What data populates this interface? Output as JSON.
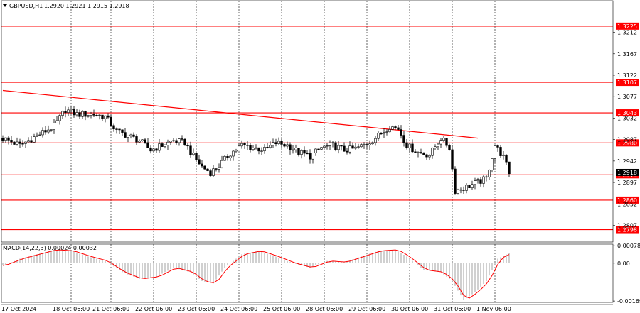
{
  "header": {
    "symbol": "GBPUSD,H1",
    "ohlc": "1.2920 1.2921 1.2915 1.2918",
    "macd_label": "MACD(14,22,3) 0.00024 0.00032"
  },
  "colors": {
    "background": "#ffffff",
    "candle": "#000000",
    "level_line": "#ff0000",
    "level_tag": "#ff0000",
    "trend_line": "#ff0000",
    "grid": "#000000",
    "macd_hist": "#a0a0a0",
    "macd_signal": "#ff0000"
  },
  "chart_data": {
    "type": "candlestick",
    "price_axis": {
      "range": [
        1.2772,
        1.3262
      ],
      "tick_labels": [
        "1.3212",
        "1.3167",
        "1.3122",
        "1.3077",
        "1.3032",
        "1.2987",
        "1.2942",
        "1.2897",
        "1.2852",
        "1.2807"
      ],
      "tick_values": [
        1.3212,
        1.3167,
        1.3122,
        1.3077,
        1.3032,
        1.2987,
        1.2942,
        1.2897,
        1.2852,
        1.2807
      ]
    },
    "levels": [
      {
        "value": 1.3225,
        "label": "1.3225"
      },
      {
        "value": 1.3107,
        "label": "1.3107"
      },
      {
        "value": 1.3043,
        "label": "1.3043"
      },
      {
        "value": 1.298,
        "label": "1.2980"
      },
      {
        "value": 1.2913,
        "label": "1.2913"
      },
      {
        "value": 1.286,
        "label": "1.2860"
      },
      {
        "value": 1.2798,
        "label": "1.2798"
      }
    ],
    "current_price": {
      "value": 1.2918,
      "label": "1.2918"
    },
    "trend_line": {
      "from": {
        "bar": 0,
        "price": 1.309
      },
      "to": {
        "bar": 167,
        "price": 1.299
      }
    },
    "time_labels": [
      {
        "bar": 0,
        "label": "17 Oct 2024"
      },
      {
        "bar": 24,
        "label": "18 Oct 06:00"
      },
      {
        "bar": 38,
        "label": "21 Oct 06:00"
      },
      {
        "bar": 53,
        "label": "22 Oct 06:00"
      },
      {
        "bar": 68,
        "label": "23 Oct 06:00"
      },
      {
        "bar": 83,
        "label": "24 Oct 06:00"
      },
      {
        "bar": 98,
        "label": "25 Oct 06:00"
      },
      {
        "bar": 113,
        "label": "28 Oct 06:00"
      },
      {
        "bar": 128,
        "label": "29 Oct 06:00"
      },
      {
        "bar": 143,
        "label": "30 Oct 06:00"
      },
      {
        "bar": 158,
        "label": "31 Oct 06:00"
      },
      {
        "bar": 173,
        "label": "1 Nov 06:00"
      }
    ],
    "bars_total": 215,
    "close_path": [
      [
        0,
        1.299
      ],
      [
        6,
        1.2975
      ],
      [
        12,
        1.2995
      ],
      [
        18,
        1.3015
      ],
      [
        22,
        1.305
      ],
      [
        26,
        1.304
      ],
      [
        32,
        1.304
      ],
      [
        36,
        1.3035
      ],
      [
        40,
        1.3005
      ],
      [
        44,
        1.2995
      ],
      [
        48,
        1.2985
      ],
      [
        52,
        1.2965
      ],
      [
        56,
        1.2975
      ],
      [
        60,
        1.2985
      ],
      [
        64,
        1.298
      ],
      [
        67,
        1.2952
      ],
      [
        70,
        1.293
      ],
      [
        73,
        1.2918
      ],
      [
        76,
        1.2932
      ],
      [
        80,
        1.2958
      ],
      [
        84,
        1.2975
      ],
      [
        88,
        1.297
      ],
      [
        92,
        1.2965
      ],
      [
        96,
        1.298
      ],
      [
        100,
        1.2975
      ],
      [
        104,
        1.296
      ],
      [
        108,
        1.2952
      ],
      [
        112,
        1.297
      ],
      [
        116,
        1.2975
      ],
      [
        120,
        1.2965
      ],
      [
        124,
        1.2968
      ],
      [
        128,
        1.2978
      ],
      [
        132,
        1.2995
      ],
      [
        136,
        1.3015
      ],
      [
        139,
        1.301
      ],
      [
        142,
        1.2975
      ],
      [
        146,
        1.296
      ],
      [
        150,
        1.2955
      ],
      [
        154,
        1.299
      ],
      [
        157,
        1.297
      ],
      [
        159,
        1.288
      ],
      [
        162,
        1.2885
      ],
      [
        166,
        1.2895
      ],
      [
        170,
        1.2905
      ],
      [
        173,
        1.2975
      ],
      [
        176,
        1.295
      ],
      [
        178,
        1.2918
      ]
    ],
    "macd": {
      "label": "MACD(14,22,3) 0.00024 0.00032",
      "range": [
        -0.00175,
        0.00085
      ],
      "tick_labels": [
        "0.00078",
        "0.00",
        "-0.00169"
      ],
      "tick_values": [
        0.00078,
        0.0,
        -0.00169
      ],
      "path": [
        [
          0,
          -0.0001
        ],
        [
          6,
          0.0002
        ],
        [
          12,
          0.0004
        ],
        [
          18,
          0.0006
        ],
        [
          24,
          0.00055
        ],
        [
          30,
          0.0003
        ],
        [
          36,
          0.0001
        ],
        [
          42,
          -0.0004
        ],
        [
          48,
          -0.0007
        ],
        [
          54,
          -0.0006
        ],
        [
          60,
          -0.0002
        ],
        [
          66,
          -0.0004
        ],
        [
          70,
          -0.0008
        ],
        [
          74,
          -0.0009
        ],
        [
          78,
          -0.0002
        ],
        [
          84,
          0.0004
        ],
        [
          90,
          0.00055
        ],
        [
          96,
          0.0003
        ],
        [
          102,
          0.0
        ],
        [
          108,
          -0.0002
        ],
        [
          114,
          0.0001
        ],
        [
          120,
          5e-05
        ],
        [
          126,
          0.0003
        ],
        [
          132,
          0.00055
        ],
        [
          138,
          0.0006
        ],
        [
          142,
          0.0003
        ],
        [
          148,
          -0.0003
        ],
        [
          154,
          -0.0004
        ],
        [
          158,
          -0.0008
        ],
        [
          162,
          -0.00165
        ],
        [
          166,
          -0.0013
        ],
        [
          170,
          -0.0008
        ],
        [
          174,
          0.0002
        ],
        [
          178,
          0.00045
        ]
      ]
    }
  }
}
